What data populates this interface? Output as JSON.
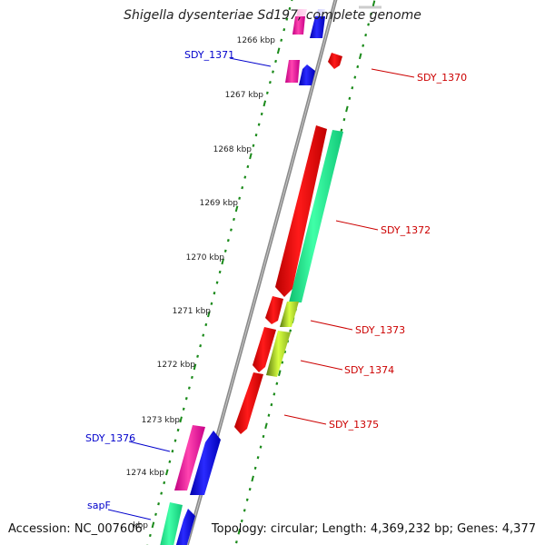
{
  "title": "Shigella dysenteriae Sd197, complete genome",
  "accession": "Accession: NC_007606",
  "topology": "Topology: circular; Length: 4,369,232 bp; Genes: 4,377",
  "colors": {
    "backbone": "#8a8a8a",
    "tick": "#1a8a1a",
    "label_plus": "#0000cc",
    "label_minus": "#cc0000"
  },
  "ruler": [
    {
      "label": "1266 kbp"
    },
    {
      "label": "1267 kbp"
    },
    {
      "label": "1268 kbp"
    },
    {
      "label": "1269 kbp"
    },
    {
      "label": "1270 kbp"
    },
    {
      "label": "1271 kbp"
    },
    {
      "label": "1272 kbp"
    },
    {
      "label": "1273 kbp"
    },
    {
      "label": "1274 kbp"
    },
    {
      "label": "kbp"
    }
  ],
  "gene_labels": [
    {
      "name": "SDY_1371",
      "strand": "plus"
    },
    {
      "name": "SDY_1370",
      "strand": "minus"
    },
    {
      "name": "SDY_1372",
      "strand": "minus"
    },
    {
      "name": "SDY_1373",
      "strand": "minus"
    },
    {
      "name": "SDY_1374",
      "strand": "minus"
    },
    {
      "name": "SDY_1375",
      "strand": "minus"
    },
    {
      "name": "SDY_1376",
      "strand": "plus"
    },
    {
      "name": "sapF",
      "strand": "plus"
    }
  ]
}
